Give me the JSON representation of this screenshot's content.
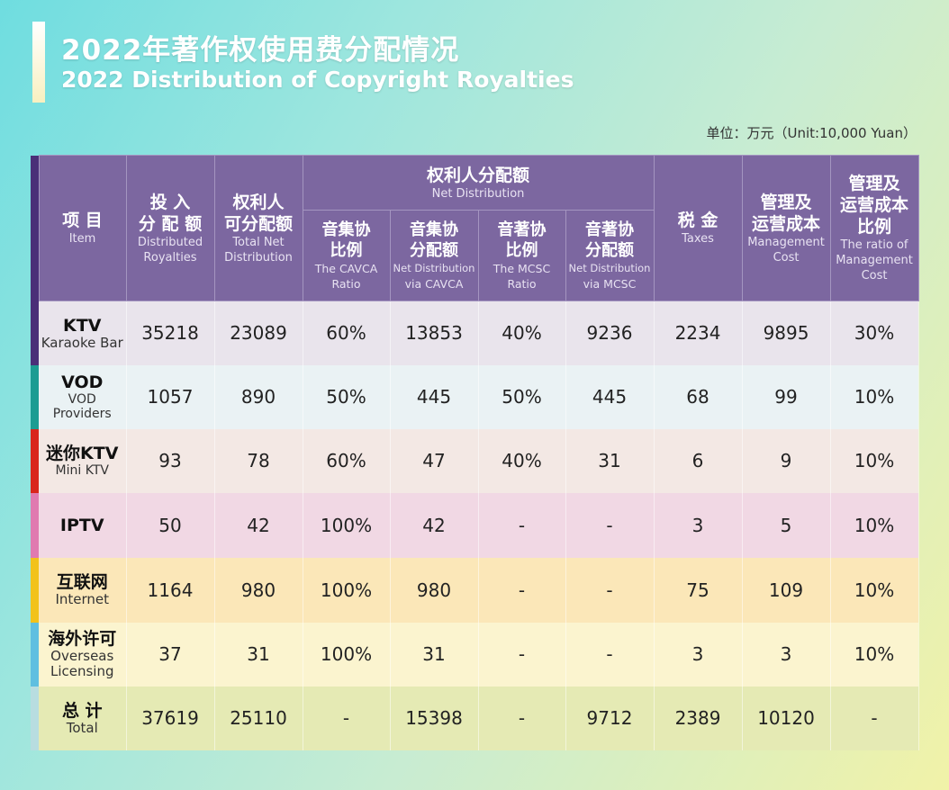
{
  "header": {
    "title_cn": "2022年著作权使用费分配情况",
    "title_en": "2022 Distribution of Copyright Royalties",
    "unit": "单位：万元（Unit:10,000 Yuan）"
  },
  "columns": {
    "item": {
      "cn": "项 目",
      "en": "Item"
    },
    "distributed": {
      "cn1": "投 入",
      "cn2": "分 配 额",
      "en1": "Distributed",
      "en2": "Royalties"
    },
    "total_net": {
      "cn1": "权利人",
      "cn2": "可分配额",
      "en1": "Total Net",
      "en2": "Distribution"
    },
    "net_group": {
      "cn": "权利人分配额",
      "en": "Net Distribution"
    },
    "cavca_ratio": {
      "cn1": "音集协",
      "cn2": "比例",
      "en1": "The CAVCA",
      "en2": "Ratio"
    },
    "cavca_net": {
      "cn1": "音集协",
      "cn2": "分配额",
      "en1": "Net Distribution",
      "en2": "via CAVCA"
    },
    "mcsc_ratio": {
      "cn1": "音著协",
      "cn2": "比例",
      "en1": "The MCSC",
      "en2": "Ratio"
    },
    "mcsc_net": {
      "cn1": "音著协",
      "cn2": "分配额",
      "en1": "Net Distribution",
      "en2": "via MCSC"
    },
    "taxes": {
      "cn": "税 金",
      "en": "Taxes"
    },
    "mgmt": {
      "cn1": "管理及",
      "cn2": "运营成本",
      "en1": "Management",
      "en2": "Cost"
    },
    "mgmt_ratio": {
      "cn1": "管理及",
      "cn2": "运营成本",
      "cn3": "比例",
      "en1": "The ratio of",
      "en2": "Management",
      "en3": "Cost"
    }
  },
  "rows": [
    {
      "cn": "KTV",
      "en": "Karaoke Bar",
      "stripe": "#4a2f78",
      "bg": "#e9e4ec",
      "values": [
        "35218",
        "23089",
        "60%",
        "13853",
        "40%",
        "9236",
        "2234",
        "9895",
        "30%"
      ]
    },
    {
      "cn": "VOD",
      "en": "VOD Providers",
      "stripe": "#1c9c92",
      "bg": "#eaf2f4",
      "values": [
        "1057",
        "890",
        "50%",
        "445",
        "50%",
        "445",
        "68",
        "99",
        "10%"
      ]
    },
    {
      "cn": "迷你KTV",
      "en": "Mini KTV",
      "stripe": "#d9261c",
      "bg": "#f3e8e4",
      "values": [
        "93",
        "78",
        "60%",
        "47",
        "40%",
        "31",
        "6",
        "9",
        "10%"
      ]
    },
    {
      "cn": "IPTV",
      "en": "",
      "stripe": "#e07ab0",
      "bg": "#f1d8e4",
      "values": [
        "50",
        "42",
        "100%",
        "42",
        "-",
        "-",
        "3",
        "5",
        "10%"
      ]
    },
    {
      "cn": "互联网",
      "en": "Internet",
      "stripe": "#f2c21a",
      "bg": "#fbe7b8",
      "values": [
        "1164",
        "980",
        "100%",
        "980",
        "-",
        "-",
        "75",
        "109",
        "10%"
      ]
    },
    {
      "cn": "海外许可",
      "en1": "Overseas",
      "en2": "Licensing",
      "stripe": "#5fbfe0",
      "bg": "#fbf4cf",
      "values": [
        "37",
        "31",
        "100%",
        "31",
        "-",
        "-",
        "3",
        "3",
        "10%"
      ]
    },
    {
      "cn": "总 计",
      "en": "Total",
      "stripe": "#b8dde0",
      "bg": "#e5eab4",
      "values": [
        "37619",
        "25110",
        "-",
        "15398",
        "-",
        "9712",
        "2389",
        "10120",
        "-"
      ]
    }
  ]
}
